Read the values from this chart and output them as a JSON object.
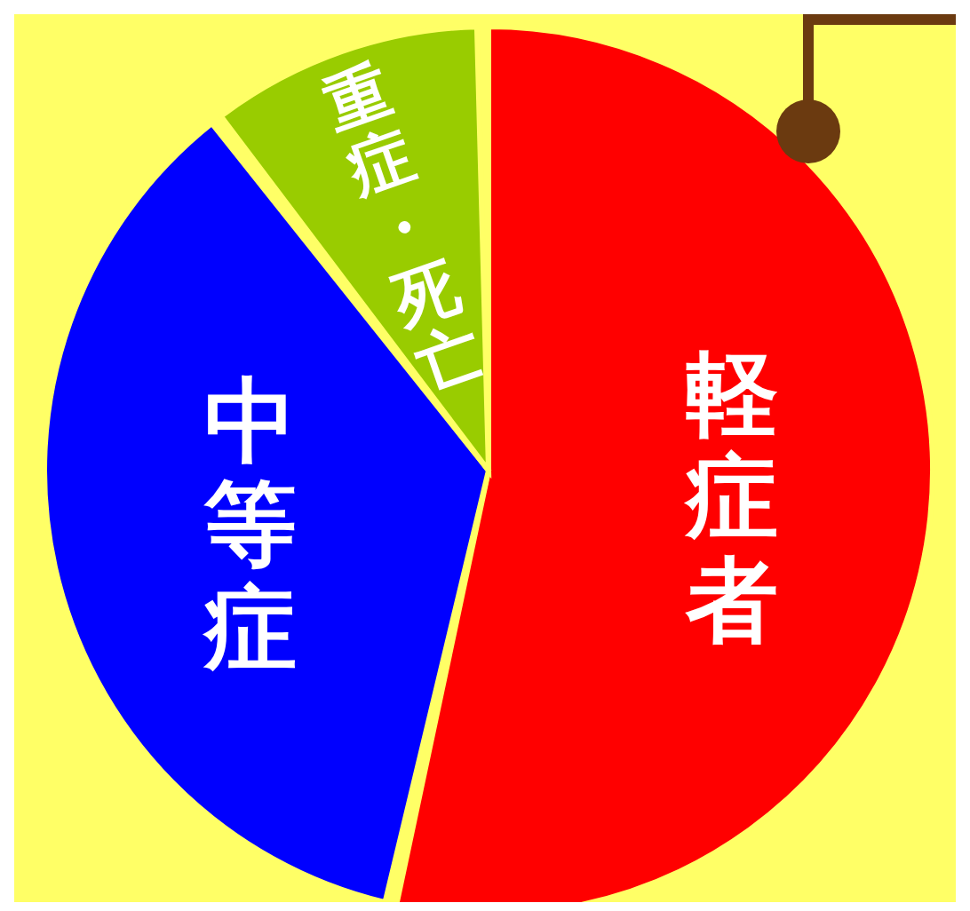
{
  "chart_data": {
    "type": "pie",
    "categories": [
      "軽症者",
      "中等症",
      "重症・死亡"
    ],
    "values": [
      54,
      36,
      10
    ],
    "colors": [
      "#ff0000",
      "#0000ff",
      "#99cc00"
    ],
    "legend": false
  }
}
